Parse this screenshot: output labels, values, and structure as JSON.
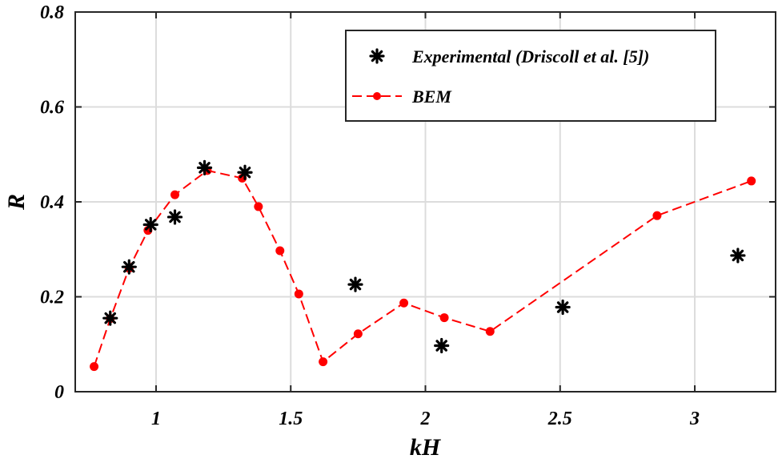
{
  "chart_data": {
    "type": "scatter",
    "title": "",
    "xlabel": "kH",
    "ylabel": "R",
    "xlim": [
      0.7,
      3.3
    ],
    "ylim": [
      0,
      0.8
    ],
    "x_ticks": [
      1,
      1.5,
      2,
      2.5,
      3
    ],
    "x_tick_labels": [
      "1",
      "1.5",
      "2",
      "2.5",
      "3"
    ],
    "y_ticks": [
      0,
      0.2,
      0.4,
      0.6,
      0.8
    ],
    "y_tick_labels": [
      "0",
      "0.2",
      "0.4",
      "0.6",
      "0.8"
    ],
    "grid": true,
    "legend_position": "top-right",
    "series": [
      {
        "name": "Experimental (Driscoll et al. [5])",
        "style": "asterisk-markers",
        "color": "#000000",
        "x": [
          0.83,
          0.9,
          0.98,
          1.07,
          1.18,
          1.33,
          1.74,
          2.06,
          2.51,
          3.16
        ],
        "y": [
          0.155,
          0.263,
          0.352,
          0.368,
          0.472,
          0.462,
          0.226,
          0.097,
          0.178,
          0.287
        ]
      },
      {
        "name": "BEM",
        "style": "dashed-line-dot-markers",
        "color": "#ff0000",
        "x": [
          0.77,
          0.83,
          0.9,
          0.97,
          1.07,
          1.19,
          1.32,
          1.38,
          1.46,
          1.53,
          1.62,
          1.75,
          1.92,
          2.07,
          2.24,
          2.86,
          3.21
        ],
        "y": [
          0.053,
          0.154,
          0.26,
          0.34,
          0.415,
          0.466,
          0.45,
          0.39,
          0.297,
          0.206,
          0.063,
          0.122,
          0.187,
          0.156,
          0.127,
          0.371,
          0.444
        ]
      }
    ]
  }
}
